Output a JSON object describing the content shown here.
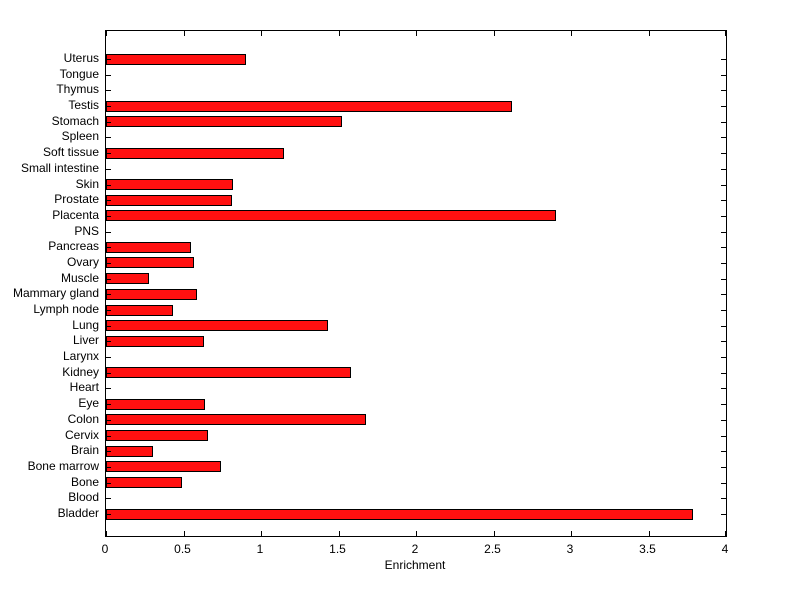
{
  "chart_data": {
    "type": "bar",
    "orientation": "horizontal",
    "title": "",
    "xlabel": "Enrichment",
    "ylabel": "",
    "xlim": [
      0,
      4
    ],
    "x_ticks": [
      0,
      0.5,
      1,
      1.5,
      2,
      2.5,
      3,
      3.5,
      4
    ],
    "x_tick_labels": [
      "0",
      "0.5",
      "1",
      "1.5",
      "2",
      "2.5",
      "3",
      "3.5",
      "4"
    ],
    "categories": [
      "Uterus",
      "Tongue",
      "Thymus",
      "Testis",
      "Stomach",
      "Spleen",
      "Soft tissue",
      "Small intestine",
      "Skin",
      "Prostate",
      "Placenta",
      "PNS",
      "Pancreas",
      "Ovary",
      "Muscle",
      "Mammary gland",
      "Lymph node",
      "Lung",
      "Liver",
      "Larynx",
      "Kidney",
      "Heart",
      "Eye",
      "Colon",
      "Cervix",
      "Brain",
      "Bone marrow",
      "Bone",
      "Blood",
      "Bladder"
    ],
    "values": [
      0.9,
      0,
      0,
      2.62,
      1.52,
      0,
      1.15,
      0,
      0.82,
      0.81,
      2.9,
      0,
      0.55,
      0.57,
      0.28,
      0.59,
      0.43,
      1.43,
      0.63,
      0,
      1.58,
      0,
      0.64,
      1.68,
      0.66,
      0.3,
      0.74,
      0.49,
      0,
      3.79
    ],
    "bar_color": "#ff1010",
    "bar_edge_color": "#000000",
    "axis_color": "#000000",
    "background_color": "#ffffff",
    "grid": false,
    "legend": null
  }
}
